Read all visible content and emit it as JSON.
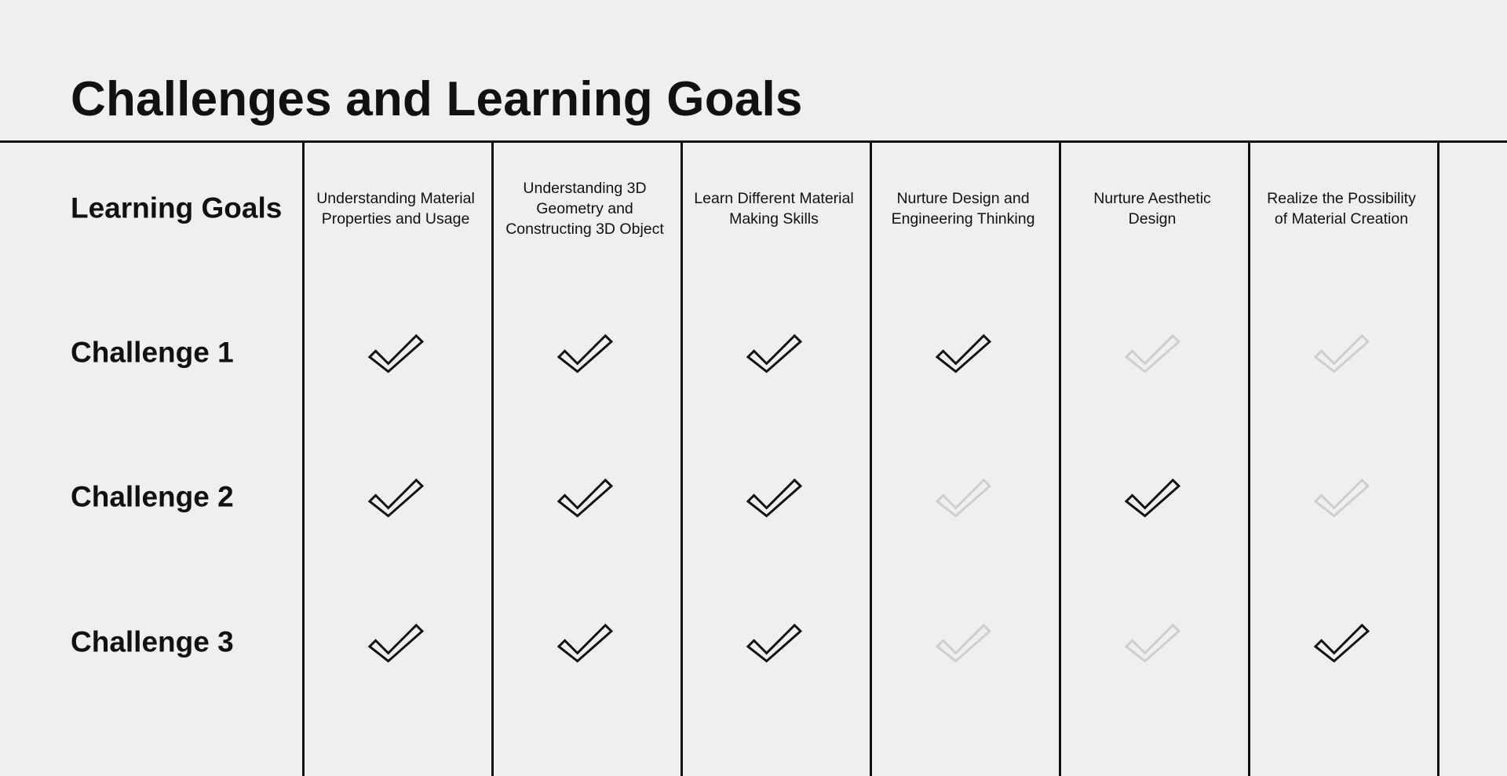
{
  "title": "Challenges and Learning Goals",
  "header_label": "Learning Goals",
  "colors": {
    "background": "#f0efed",
    "check_on": "#111111",
    "check_off": "#cfcecc",
    "rule": "#111111"
  },
  "learning_goals": [
    "Understanding Material Properties and Usage",
    "Understanding 3D Geometry and Constructing 3D Object",
    "Learn Different Material Making Skills",
    "Nurture Design and Engineering Thinking",
    "Nurture Aesthetic Design",
    "Realize the Possibility of Material Creation"
  ],
  "challenges": [
    {
      "label": "Challenge 1",
      "checks": [
        true,
        true,
        true,
        true,
        false,
        false
      ]
    },
    {
      "label": "Challenge 2",
      "checks": [
        true,
        true,
        true,
        false,
        true,
        false
      ]
    },
    {
      "label": "Challenge 3",
      "checks": [
        true,
        true,
        true,
        false,
        false,
        true
      ]
    }
  ],
  "icons": {
    "check": "check-icon"
  }
}
